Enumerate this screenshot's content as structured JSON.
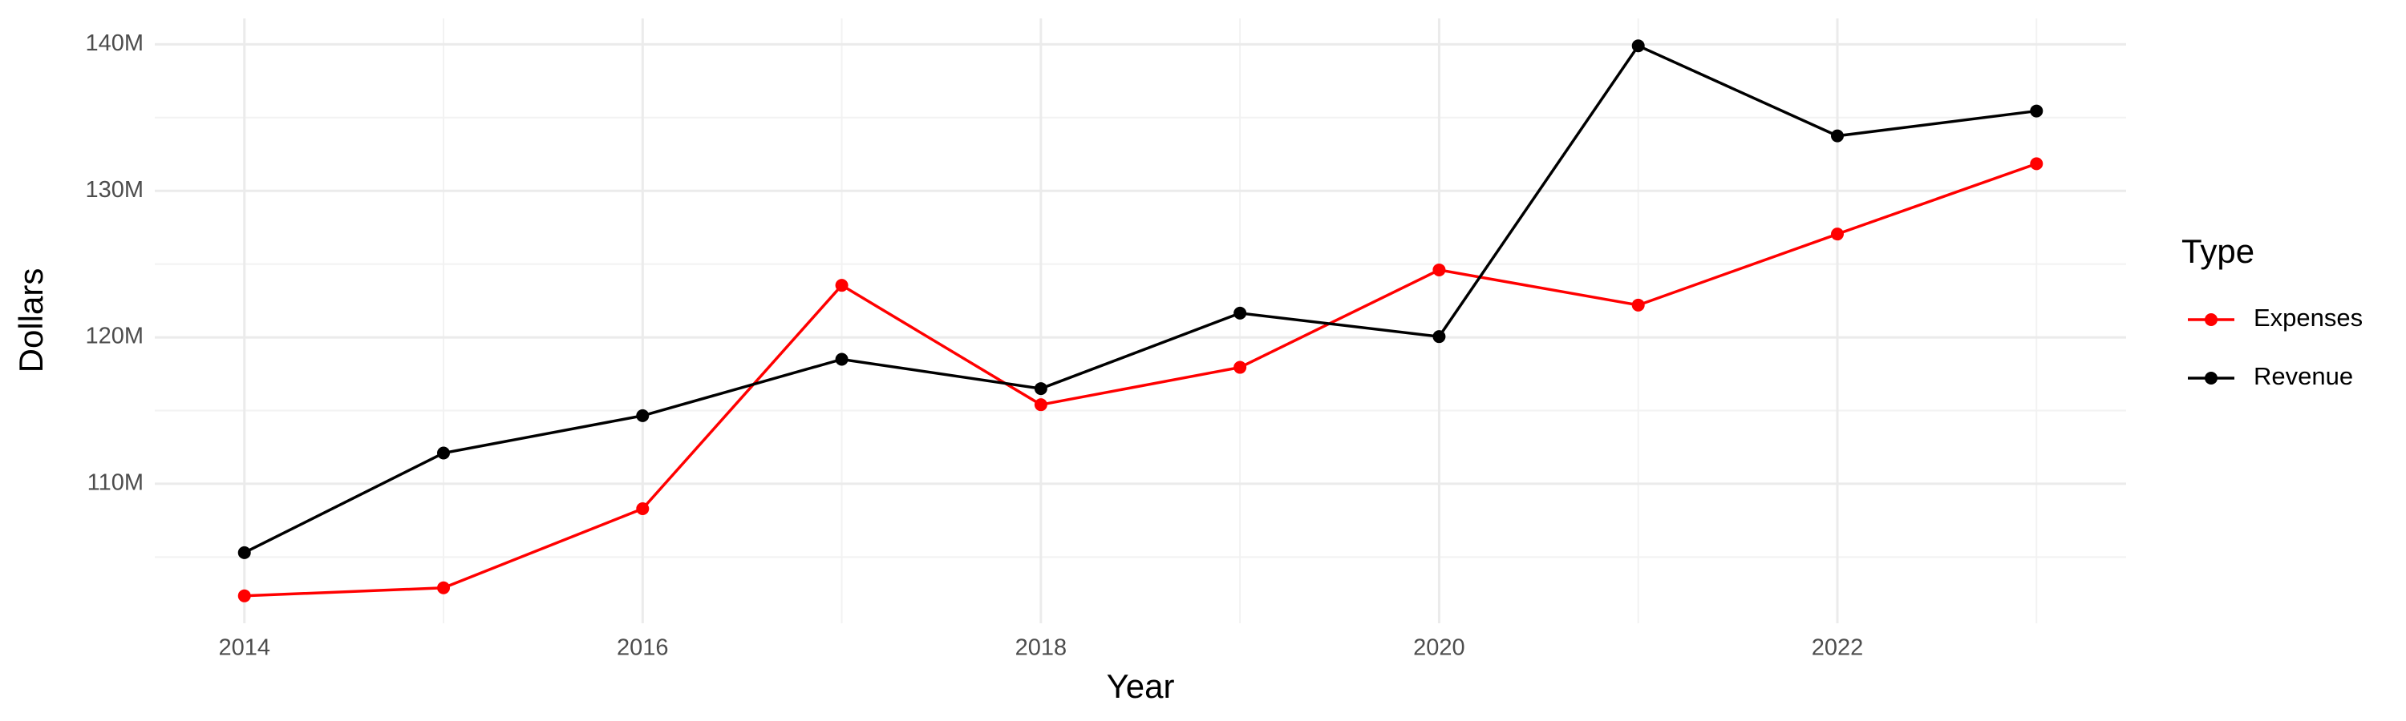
{
  "chart_data": {
    "type": "line",
    "x_label": "Year",
    "y_label": "Dollars",
    "x": [
      2014,
      2015,
      2016,
      2017,
      2018,
      2019,
      2020,
      2021,
      2022,
      2023
    ],
    "series": [
      {
        "name": "Expenses",
        "color": "#ff0000",
        "values": [
          102350000,
          102900000,
          108300000,
          123550000,
          115400000,
          117950000,
          124600000,
          122200000,
          127050000,
          131850000
        ]
      },
      {
        "name": "Revenue",
        "color": "#000000",
        "values": [
          105300000,
          112100000,
          114650000,
          118500000,
          116500000,
          121650000,
          120050000,
          139900000,
          133750000,
          135450000
        ]
      }
    ],
    "xlim": [
      2013.55,
      2023.45
    ],
    "xticks": [
      2014,
      2016,
      2018,
      2020,
      2022
    ],
    "ylim": [
      100480000,
      141770000
    ],
    "yticks": [
      {
        "value": 110000000,
        "label": "110M"
      },
      {
        "value": 120000000,
        "label": "120M"
      },
      {
        "value": 130000000,
        "label": "130M"
      },
      {
        "value": 140000000,
        "label": "140M"
      }
    ],
    "grid": true,
    "legend_title": "Type",
    "legend_position": "right"
  }
}
